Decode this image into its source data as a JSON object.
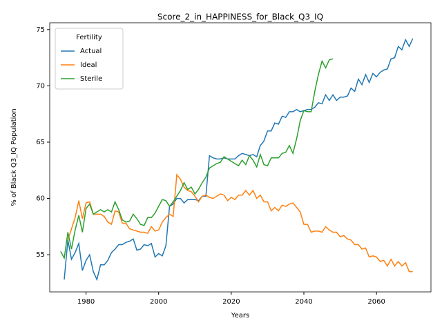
{
  "chart_data": {
    "type": "line",
    "title": "Score_2_in_HAPPINESS_for_Black_Q3_IQ",
    "x_label": "Years",
    "y_label": "% of Black Q3_IQ Population",
    "legend_title": "Fertility",
    "legend": "upper left",
    "x": [
      1973,
      1974,
      1975,
      1976,
      1977,
      1978,
      1979,
      1980,
      1981,
      1982,
      1983,
      1984,
      1985,
      1986,
      1987,
      1988,
      1989,
      1990,
      1991,
      1992,
      1993,
      1994,
      1995,
      1996,
      1997,
      1998,
      1999,
      2000,
      2001,
      2002,
      2003,
      2004,
      2005,
      2006,
      2007,
      2008,
      2009,
      2010,
      2011,
      2012,
      2013,
      2014,
      2015,
      2016,
      2017,
      2018,
      2019,
      2020,
      2021,
      2022,
      2023,
      2024,
      2025,
      2026,
      2027,
      2028,
      2029,
      2030,
      2031,
      2032,
      2033,
      2034,
      2035,
      2036,
      2037,
      2038,
      2039,
      2040,
      2041,
      2042,
      2043,
      2044,
      2045,
      2046,
      2047,
      2048,
      2049,
      2050,
      2051,
      2052,
      2053,
      2054,
      2055,
      2056,
      2057,
      2058,
      2059,
      2060,
      2061,
      2062,
      2063,
      2064,
      2065,
      2066,
      2067,
      2068,
      2069,
      2070
    ],
    "series": [
      {
        "name": "Actual",
        "color": "#1f77b4",
        "values": [
          null,
          52.8,
          56.3,
          54.6,
          55.2,
          56.0,
          53.6,
          54.5,
          55.0,
          53.5,
          52.8,
          54.1,
          54.1,
          54.5,
          55.2,
          55.5,
          55.9,
          55.9,
          56.1,
          56.2,
          56.4,
          55.4,
          55.5,
          55.9,
          55.8,
          56.0,
          54.8,
          55.1,
          54.9,
          55.8,
          59.3,
          59.5,
          60.0,
          60.0,
          59.6,
          59.9,
          59.9,
          59.9,
          59.8,
          60.2,
          60.2,
          63.8,
          63.6,
          63.5,
          63.5,
          63.6,
          63.5,
          63.5,
          63.5,
          63.8,
          64.0,
          63.9,
          63.8,
          63.9,
          63.7,
          64.7,
          65.1,
          66.0,
          66.0,
          66.7,
          66.6,
          67.3,
          67.2,
          67.7,
          67.7,
          67.9,
          67.7,
          67.8,
          67.9,
          67.9,
          68.1,
          68.5,
          68.4,
          69.2,
          68.7,
          69.2,
          68.7,
          69.0,
          69.0,
          69.1,
          69.8,
          69.5,
          70.6,
          70.1,
          71.0,
          70.3,
          71.1,
          70.8,
          71.2,
          71.4,
          71.5,
          72.4,
          72.5,
          73.5,
          73.2,
          74.1,
          73.5,
          74.2
        ]
      },
      {
        "name": "Ideal",
        "color": "#ff7f0e",
        "values": [
          null,
          null,
          56.3,
          57.3,
          58.3,
          59.8,
          58.2,
          59.6,
          59.7,
          58.6,
          58.6,
          58.6,
          58.4,
          57.9,
          57.7,
          58.9,
          58.8,
          57.8,
          57.8,
          57.3,
          57.2,
          57.1,
          57.0,
          57.0,
          56.9,
          57.5,
          57.1,
          57.2,
          57.9,
          58.3,
          58.6,
          58.4,
          62.1,
          61.7,
          61.0,
          60.7,
          60.6,
          60.2,
          59.7,
          60.2,
          60.3,
          60.1,
          60.0,
          60.2,
          60.4,
          60.3,
          59.8,
          60.1,
          59.9,
          60.3,
          60.3,
          60.7,
          60.3,
          60.7,
          60.0,
          60.3,
          59.7,
          59.7,
          58.9,
          59.2,
          58.9,
          59.4,
          59.3,
          59.5,
          59.6,
          59.2,
          58.8,
          57.7,
          57.7,
          57.0,
          57.1,
          57.1,
          57.0,
          57.5,
          57.2,
          57.0,
          57.0,
          56.6,
          56.7,
          56.4,
          56.3,
          55.9,
          55.9,
          55.5,
          55.6,
          54.8,
          54.9,
          54.8,
          54.4,
          54.5,
          54.0,
          54.6,
          54.0,
          54.4,
          54.0,
          54.3,
          53.5,
          53.5
        ]
      },
      {
        "name": "Sterile",
        "color": "#2ca02c",
        "values": [
          55.3,
          54.7,
          57.0,
          55.5,
          57.2,
          58.5,
          57.0,
          59.1,
          59.5,
          58.6,
          58.8,
          59.0,
          58.8,
          59.0,
          58.8,
          59.7,
          59.0,
          58.1,
          57.9,
          58.0,
          58.6,
          58.2,
          57.7,
          57.6,
          58.3,
          58.3,
          58.7,
          59.3,
          59.9,
          59.8,
          59.3,
          59.7,
          60.2,
          60.7,
          61.4,
          60.8,
          61.0,
          60.4,
          60.8,
          61.4,
          61.9,
          62.7,
          62.9,
          63.1,
          63.2,
          63.7,
          63.5,
          63.3,
          63.1,
          62.9,
          63.4,
          63.0,
          63.8,
          63.4,
          62.8,
          63.9,
          63.0,
          62.9,
          63.6,
          63.6,
          63.6,
          64.0,
          64.1,
          64.7,
          64.0,
          65.3,
          66.9,
          67.8,
          67.7,
          67.7,
          69.5,
          71.0,
          72.2,
          71.6,
          72.3,
          72.4,
          null,
          null,
          null,
          null,
          null,
          null,
          null,
          null,
          null,
          null,
          null,
          null,
          null,
          null,
          null,
          null,
          null,
          null,
          null,
          null,
          null,
          null
        ]
      }
    ],
    "xlim": [
      1970,
      2075
    ],
    "xticks": [
      1980,
      2000,
      2020,
      2040,
      2060
    ],
    "ylim": [
      51.7,
      75.6
    ],
    "yticks": [
      55,
      60,
      65,
      70,
      75
    ],
    "grid": false
  }
}
